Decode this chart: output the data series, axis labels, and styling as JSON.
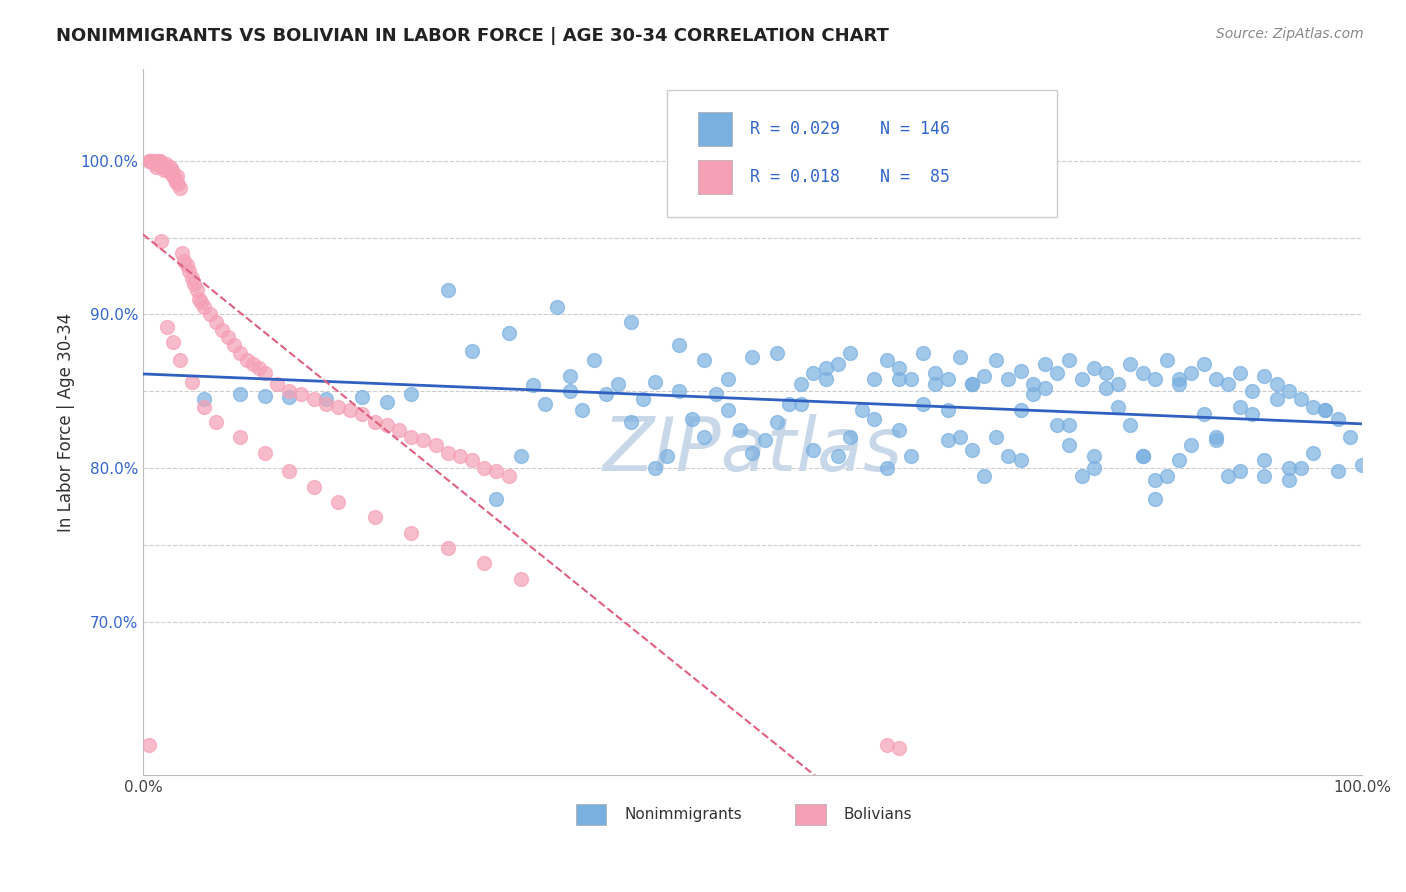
{
  "title": "NONIMMIGRANTS VS BOLIVIAN IN LABOR FORCE | AGE 30-34 CORRELATION CHART",
  "source_text": "Source: ZipAtlas.com",
  "ylabel": "In Labor Force | Age 30-34",
  "xlim": [
    0.0,
    1.0
  ],
  "ylim": [
    0.6,
    1.06
  ],
  "legend_r_blue": "0.029",
  "legend_n_blue": "146",
  "legend_r_pink": "0.018",
  "legend_n_pink": "85",
  "blue_color": "#7ab0e0",
  "pink_color": "#f5a0b5",
  "trend_blue_color": "#3060c0",
  "trend_pink_color": "#e06080",
  "grid_color": "#cccccc",
  "watermark_color": "#c8d8e8",
  "background_color": "#ffffff",
  "blue_scatter_x": [
    0.05,
    0.08,
    0.1,
    0.12,
    0.15,
    0.18,
    0.2,
    0.22,
    0.25,
    0.27,
    0.3,
    0.32,
    0.35,
    0.37,
    0.4,
    0.42,
    0.44,
    0.46,
    0.48,
    0.5,
    0.52,
    0.54,
    0.56,
    0.58,
    0.6,
    0.61,
    0.62,
    0.63,
    0.64,
    0.65,
    0.66,
    0.67,
    0.68,
    0.69,
    0.7,
    0.71,
    0.72,
    0.73,
    0.74,
    0.75,
    0.76,
    0.77,
    0.78,
    0.79,
    0.8,
    0.81,
    0.82,
    0.83,
    0.84,
    0.85,
    0.86,
    0.87,
    0.88,
    0.89,
    0.9,
    0.91,
    0.92,
    0.93,
    0.94,
    0.95,
    0.96,
    0.97,
    0.98,
    0.99,
    1.0,
    0.35,
    0.42,
    0.5,
    0.55,
    0.62,
    0.68,
    0.73,
    0.79,
    0.85,
    0.9,
    0.93,
    0.97,
    0.29,
    0.39,
    0.47,
    0.56,
    0.64,
    0.72,
    0.81,
    0.88,
    0.96,
    0.31,
    0.44,
    0.54,
    0.66,
    0.76,
    0.86,
    0.94,
    0.33,
    0.48,
    0.6,
    0.7,
    0.82,
    0.92,
    0.36,
    0.52,
    0.67,
    0.78,
    0.89,
    0.4,
    0.58,
    0.71,
    0.84,
    0.46,
    0.63,
    0.77,
    0.43,
    0.69,
    0.83,
    0.34,
    0.57,
    0.74,
    0.87,
    0.38,
    0.53,
    0.65,
    0.8,
    0.91,
    0.41,
    0.59,
    0.75,
    0.88,
    0.45,
    0.62,
    0.76,
    0.92,
    0.49,
    0.66,
    0.82,
    0.95,
    0.51,
    0.68,
    0.85,
    0.98,
    0.55,
    0.72,
    0.9,
    0.57,
    0.78,
    0.94,
    0.61,
    0.83
  ],
  "blue_scatter_y": [
    0.845,
    0.848,
    0.847,
    0.846,
    0.845,
    0.846,
    0.843,
    0.848,
    0.916,
    0.876,
    0.888,
    0.854,
    0.86,
    0.87,
    0.895,
    0.856,
    0.88,
    0.87,
    0.858,
    0.872,
    0.875,
    0.855,
    0.865,
    0.875,
    0.858,
    0.87,
    0.865,
    0.858,
    0.875,
    0.862,
    0.858,
    0.872,
    0.855,
    0.86,
    0.87,
    0.858,
    0.863,
    0.855,
    0.868,
    0.862,
    0.87,
    0.858,
    0.865,
    0.862,
    0.855,
    0.868,
    0.862,
    0.858,
    0.87,
    0.855,
    0.862,
    0.868,
    0.858,
    0.855,
    0.862,
    0.85,
    0.86,
    0.855,
    0.85,
    0.845,
    0.84,
    0.838,
    0.832,
    0.82,
    0.802,
    0.85,
    0.8,
    0.81,
    0.862,
    0.858,
    0.855,
    0.848,
    0.852,
    0.858,
    0.84,
    0.845,
    0.838,
    0.78,
    0.855,
    0.848,
    0.858,
    0.842,
    0.838,
    0.828,
    0.82,
    0.81,
    0.808,
    0.85,
    0.842,
    0.838,
    0.828,
    0.815,
    0.8,
    0.842,
    0.838,
    0.832,
    0.82,
    0.808,
    0.795,
    0.838,
    0.83,
    0.82,
    0.808,
    0.795,
    0.83,
    0.82,
    0.808,
    0.795,
    0.82,
    0.808,
    0.795,
    0.808,
    0.795,
    0.78,
    0.905,
    0.868,
    0.852,
    0.835,
    0.848,
    0.842,
    0.855,
    0.84,
    0.835,
    0.845,
    0.838,
    0.828,
    0.818,
    0.832,
    0.825,
    0.815,
    0.805,
    0.825,
    0.818,
    0.808,
    0.8,
    0.818,
    0.812,
    0.805,
    0.798,
    0.812,
    0.805,
    0.798,
    0.808,
    0.8,
    0.792,
    0.8,
    0.792
  ],
  "pink_scatter_x": [
    0.005,
    0.006,
    0.007,
    0.008,
    0.009,
    0.01,
    0.011,
    0.012,
    0.013,
    0.014,
    0.015,
    0.016,
    0.017,
    0.018,
    0.019,
    0.02,
    0.021,
    0.022,
    0.023,
    0.024,
    0.025,
    0.026,
    0.027,
    0.028,
    0.029,
    0.03,
    0.032,
    0.034,
    0.036,
    0.038,
    0.04,
    0.042,
    0.044,
    0.046,
    0.048,
    0.05,
    0.055,
    0.06,
    0.065,
    0.07,
    0.075,
    0.08,
    0.085,
    0.09,
    0.095,
    0.1,
    0.11,
    0.12,
    0.13,
    0.14,
    0.15,
    0.16,
    0.17,
    0.18,
    0.19,
    0.2,
    0.21,
    0.22,
    0.23,
    0.24,
    0.25,
    0.26,
    0.27,
    0.28,
    0.29,
    0.3,
    0.015,
    0.02,
    0.025,
    0.03,
    0.04,
    0.05,
    0.06,
    0.08,
    0.1,
    0.12,
    0.14,
    0.16,
    0.19,
    0.22,
    0.25,
    0.28,
    0.31,
    0.005,
    0.61,
    0.62
  ],
  "pink_scatter_y": [
    1.0,
    1.0,
    1.0,
    1.0,
    1.0,
    0.998,
    0.996,
    0.998,
    1.0,
    1.0,
    0.998,
    0.996,
    0.994,
    0.996,
    0.998,
    0.995,
    0.993,
    0.996,
    0.992,
    0.994,
    0.99,
    0.988,
    0.986,
    0.99,
    0.985,
    0.982,
    0.94,
    0.935,
    0.932,
    0.928,
    0.924,
    0.92,
    0.916,
    0.91,
    0.908,
    0.905,
    0.9,
    0.895,
    0.89,
    0.885,
    0.88,
    0.875,
    0.87,
    0.868,
    0.865,
    0.862,
    0.855,
    0.85,
    0.848,
    0.845,
    0.842,
    0.84,
    0.838,
    0.835,
    0.83,
    0.828,
    0.825,
    0.82,
    0.818,
    0.815,
    0.81,
    0.808,
    0.805,
    0.8,
    0.798,
    0.795,
    0.948,
    0.892,
    0.882,
    0.87,
    0.856,
    0.84,
    0.83,
    0.82,
    0.81,
    0.798,
    0.788,
    0.778,
    0.768,
    0.758,
    0.748,
    0.738,
    0.728,
    0.62,
    0.62,
    0.618
  ]
}
